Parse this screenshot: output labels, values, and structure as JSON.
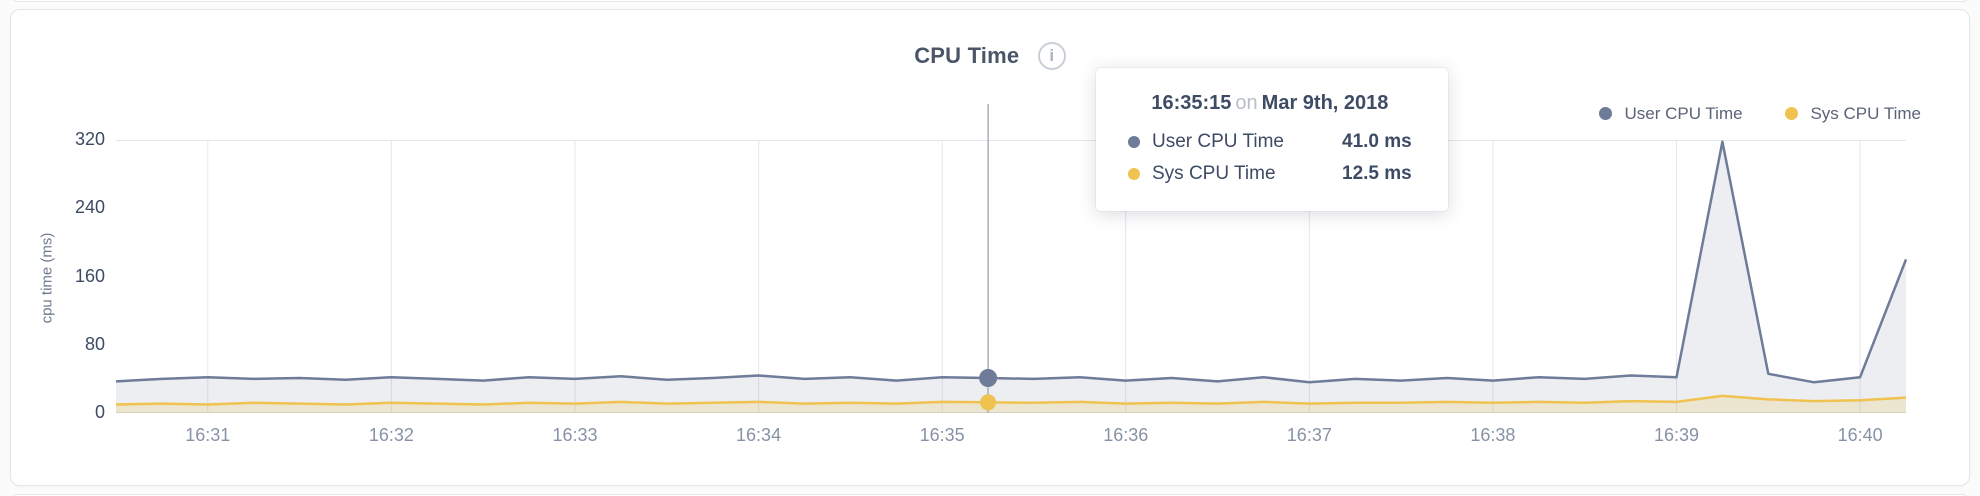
{
  "header": {
    "title": "CPU Time",
    "info_icon": "i"
  },
  "legend": {
    "items": [
      {
        "label": "User CPU Time",
        "color": "#6e7b99"
      },
      {
        "label": "Sys CPU Time",
        "color": "#f0c24f"
      }
    ]
  },
  "tooltip": {
    "time": "16:35:15",
    "connector": "on",
    "date": "Mar 9th, 2018",
    "rows": [
      {
        "label": "User CPU Time",
        "value": "41.0 ms",
        "color": "#6e7b99"
      },
      {
        "label": "Sys CPU Time",
        "value": "12.5 ms",
        "color": "#f0c24f"
      }
    ]
  },
  "chart_data": {
    "type": "line",
    "title": "CPU Time",
    "xlabel": "",
    "ylabel": "cpu time (ms)",
    "ylim": [
      0,
      320
    ],
    "yticks": [
      0,
      80,
      160,
      240,
      320
    ],
    "xticks": [
      "16:31",
      "16:32",
      "16:33",
      "16:34",
      "16:35",
      "16:36",
      "16:37",
      "16:38",
      "16:39",
      "16:40"
    ],
    "grid": "vertical",
    "legend_position": "top-right",
    "x": [
      "16:30:30",
      "16:30:45",
      "16:31:00",
      "16:31:15",
      "16:31:30",
      "16:31:45",
      "16:32:00",
      "16:32:15",
      "16:32:30",
      "16:32:45",
      "16:33:00",
      "16:33:15",
      "16:33:30",
      "16:33:45",
      "16:34:00",
      "16:34:15",
      "16:34:30",
      "16:34:45",
      "16:35:00",
      "16:35:15",
      "16:35:30",
      "16:35:45",
      "16:36:00",
      "16:36:15",
      "16:36:30",
      "16:36:45",
      "16:37:00",
      "16:37:15",
      "16:37:30",
      "16:37:45",
      "16:38:00",
      "16:38:15",
      "16:38:30",
      "16:38:45",
      "16:39:00",
      "16:39:15",
      "16:39:30",
      "16:39:45",
      "16:40:00",
      "16:40:15"
    ],
    "series": [
      {
        "name": "User CPU Time",
        "color": "#6e7b99",
        "fill": "rgba(108,120,150,0.13)",
        "values": [
          37,
          40,
          42,
          40,
          41,
          39,
          42,
          40,
          38,
          42,
          40,
          43,
          39,
          41,
          44,
          40,
          42,
          38,
          42,
          41,
          40,
          42,
          38,
          41,
          37,
          42,
          36,
          40,
          38,
          41,
          38,
          42,
          40,
          44,
          42,
          318,
          46,
          36,
          42,
          180
        ]
      },
      {
        "name": "Sys CPU Time",
        "color": "#f0c24f",
        "fill": "rgba(240,194,79,0.20)",
        "values": [
          10,
          11,
          10,
          12,
          11,
          10,
          12,
          11,
          10,
          12,
          11,
          13,
          11,
          12,
          13,
          11,
          12,
          11,
          13,
          12.5,
          12,
          13,
          11,
          12,
          11,
          13,
          11,
          12,
          12,
          13,
          12,
          13,
          12,
          14,
          13,
          20,
          16,
          14,
          15,
          18
        ]
      }
    ],
    "hover": {
      "time": "16:35:15",
      "index": 19,
      "values": [
        41.0,
        12.5
      ]
    }
  }
}
